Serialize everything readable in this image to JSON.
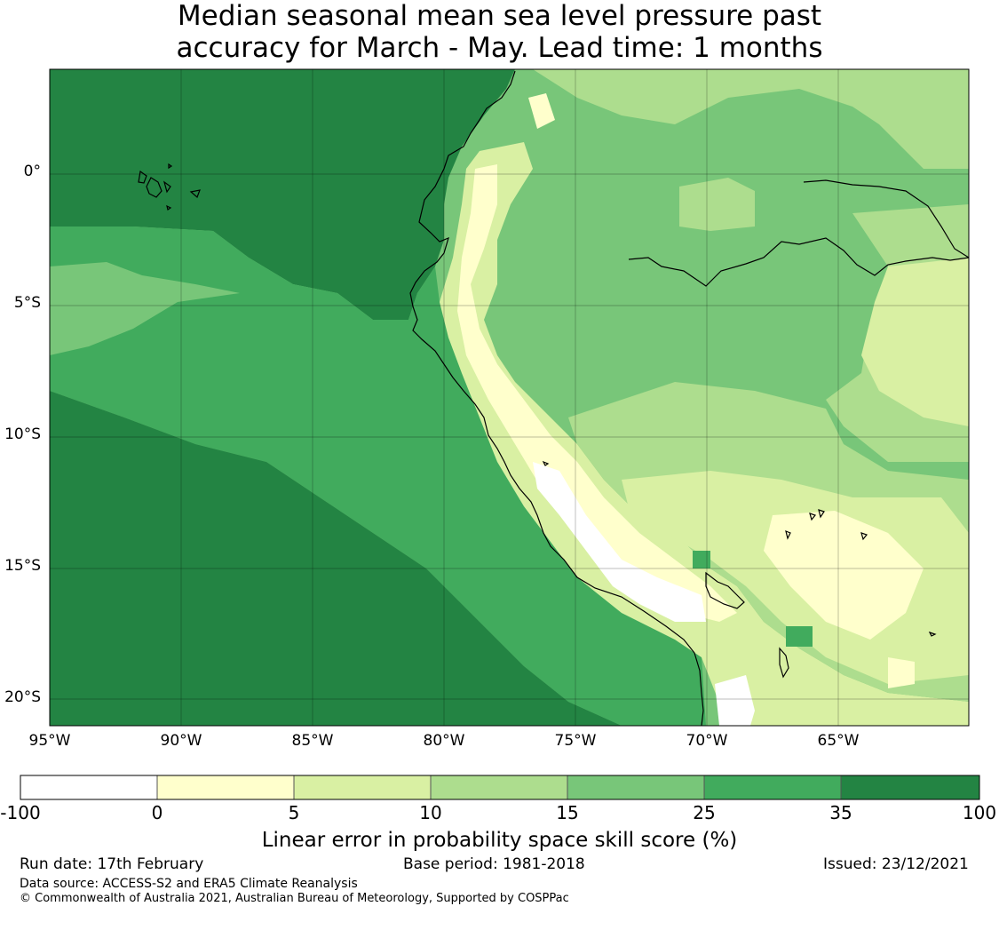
{
  "title": [
    "Median seasonal mean sea level pressure past",
    "accuracy for March - May. Lead time: 1 months"
  ],
  "lat_labels": [
    "0°",
    "5°S",
    "10°S",
    "15°S",
    "20°S"
  ],
  "lon_labels": [
    "95°W",
    "90°W",
    "85°W",
    "80°W",
    "75°W",
    "70°W",
    "65°W"
  ],
  "colorbar": {
    "label": "Linear error in probability space skill score (%)",
    "ticks": [
      "-100",
      "0",
      "5",
      "10",
      "15",
      "25",
      "35",
      "100"
    ],
    "bins": [
      {
        "range": "-100 to 0",
        "color": "#ffffff"
      },
      {
        "range": "0 to 5",
        "color": "#ffffcc"
      },
      {
        "range": "5 to 10",
        "color": "#d9f0a3"
      },
      {
        "range": "10 to 15",
        "color": "#addd8e"
      },
      {
        "range": "15 to 25",
        "color": "#78c679"
      },
      {
        "range": "25 to 35",
        "color": "#41ab5d"
      },
      {
        "range": "35 to 100",
        "color": "#238443"
      }
    ]
  },
  "footer": {
    "run_date": "Run date: 17th February",
    "base_period": "Base period: 1981-2018",
    "issued": "Issued: 23/12/2021",
    "data_source": "Data source: ACCESS-S2 and ERA5 Climate Reanalysis",
    "copyright": "© Commonwealth of Australia 2021, Australian Bureau of Meteorology, Supported by COSPPac"
  },
  "map_extent": {
    "lon": [
      "95°W",
      "60°W"
    ],
    "lat": [
      "4°N",
      "21°S"
    ]
  }
}
